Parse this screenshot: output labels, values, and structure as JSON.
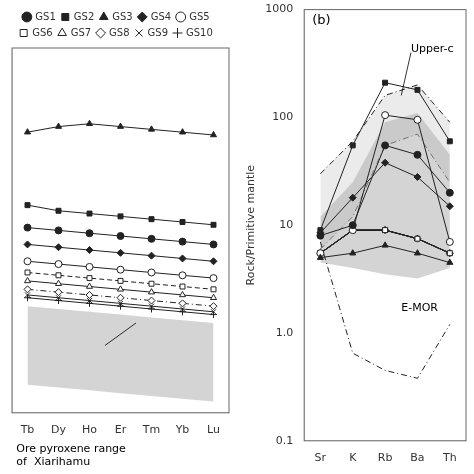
{
  "chart_data": [
    {
      "type": "line",
      "categories": [
        "Tb",
        "Dy",
        "Ho",
        "Er",
        "Tm",
        "Yb",
        "Lu"
      ],
      "color": "#222222",
      "series": [
        {
          "name": "GS1",
          "marker": "circle",
          "line_style": "solid",
          "values": [
            3.8,
            3.75,
            3.7,
            3.65,
            3.6,
            3.55,
            3.5
          ]
        },
        {
          "name": "GS2",
          "marker": "square",
          "line_style": "solid",
          "values": [
            4.2,
            4.1,
            4.05,
            4.0,
            3.95,
            3.9,
            3.85
          ]
        },
        {
          "name": "GS3",
          "marker": "triangle",
          "line_style": "solid",
          "values": [
            5.5,
            5.6,
            5.65,
            5.6,
            5.55,
            5.5,
            5.45
          ]
        },
        {
          "name": "GS4",
          "marker": "diamond",
          "line_style": "solid",
          "values": [
            3.5,
            3.45,
            3.4,
            3.35,
            3.3,
            3.25,
            3.2
          ]
        },
        {
          "name": "GS5",
          "marker": "circle-open",
          "line_style": "solid",
          "values": [
            3.2,
            3.15,
            3.1,
            3.05,
            3.0,
            2.95,
            2.9
          ]
        },
        {
          "name": "GS6",
          "marker": "square-open",
          "line_style": "dashed",
          "values": [
            3.0,
            2.95,
            2.9,
            2.85,
            2.8,
            2.75,
            2.7
          ]
        },
        {
          "name": "GS7",
          "marker": "triangle-open",
          "line_style": "solid",
          "values": [
            2.85,
            2.8,
            2.75,
            2.7,
            2.65,
            2.6,
            2.55
          ]
        },
        {
          "name": "GS8",
          "marker": "diamond-open",
          "line_style": "dashdot",
          "values": [
            2.7,
            2.65,
            2.6,
            2.55,
            2.5,
            2.45,
            2.4
          ]
        },
        {
          "name": "GS9",
          "marker": "x",
          "line_style": "solid",
          "values": [
            2.6,
            2.55,
            2.5,
            2.45,
            2.4,
            2.35,
            2.3
          ]
        },
        {
          "name": "GS10",
          "marker": "plus",
          "line_style": "solid",
          "values": [
            2.55,
            2.5,
            2.45,
            2.4,
            2.35,
            2.3,
            2.25
          ]
        }
      ],
      "bands": [
        {
          "lower": [
            1.0,
            0.95,
            0.9,
            0.85,
            0.8,
            0.75,
            0.7
          ],
          "upper": [
            2.4,
            2.35,
            2.3,
            2.25,
            2.2,
            2.15,
            2.1
          ],
          "color": "#b0b0b0"
        }
      ],
      "annotations": [
        {
          "text": "Ore pyroxene range\nof  Xiarihamu",
          "position": "below"
        },
        {
          "from": [
            2.5,
            1.7
          ],
          "to": [
            3.5,
            2.1
          ]
        }
      ],
      "ylim": [
        0.5,
        7.0
      ],
      "tick_labels": "x",
      "grid": false,
      "legend": "top"
    },
    {
      "type": "line",
      "categories": [
        "Sr",
        "K",
        "Rb",
        "Ba",
        "Th"
      ],
      "color": "#222222",
      "y_label": "Rock/Primitive mantle",
      "log": "y",
      "ylim": [
        0.1,
        1000
      ],
      "yticks": [
        0.1,
        {
          "value": 1,
          "label": "1.0"
        },
        10,
        100,
        1000
      ],
      "grid": false,
      "series": [
        {
          "name": "GS1",
          "marker": "circle",
          "line_style": "solid",
          "values": [
            8.0,
            10.0,
            55.0,
            45.0,
            20.0
          ]
        },
        {
          "name": "GS2",
          "marker": "square",
          "line_style": "solid",
          "values": [
            9.0,
            55.0,
            210.0,
            180.0,
            60.0
          ]
        },
        {
          "name": "GS3",
          "marker": "triangle",
          "line_style": "solid",
          "values": [
            5.0,
            5.5,
            6.5,
            5.5,
            4.5
          ]
        },
        {
          "name": "GS4",
          "marker": "diamond",
          "line_style": "solid",
          "values": [
            8.5,
            18.0,
            38.0,
            28.0,
            15.0
          ]
        },
        {
          "name": "GS5",
          "marker": "circle-open",
          "line_style": "solid",
          "values": [
            5.5,
            9.0,
            105.0,
            95.0,
            7.0
          ]
        },
        {
          "name": "GS6",
          "marker": "square-open",
          "line_style": "solid",
          "values": [
            5.5,
            9.0,
            9.0,
            7.5,
            5.5
          ]
        },
        {
          "name": "GS7",
          "marker": "triangle-open",
          "line_style": "solid",
          "values": [
            5.5,
            9.0,
            9.0,
            7.5,
            5.5
          ]
        },
        {
          "name": "GS8",
          "marker": "diamond-open",
          "line_style": "solid",
          "values": [
            5.5,
            9.0,
            9.0,
            7.5,
            5.5
          ]
        },
        {
          "name": "GS9",
          "marker": "x",
          "line_style": "solid",
          "values": [
            5.5,
            9.0,
            9.0,
            7.5,
            5.5
          ]
        },
        {
          "name": "GS10",
          "marker": "plus",
          "line_style": "solid",
          "values": [
            5.5,
            9.0,
            9.0,
            7.5,
            5.5
          ]
        }
      ],
      "bands": [
        {
          "lower": [
            4.5,
            4.0,
            3.5,
            3.2,
            4.0
          ],
          "upper": [
            12,
            25,
            90,
            110,
            45
          ],
          "color": "#b0b0b0"
        },
        {
          "lower": [
            6,
            12,
            55,
            70,
            25
          ],
          "upper": [
            30,
            60,
            160,
            200,
            90
          ],
          "color": "#b0b0b0",
          "line_style": "dashdot"
        }
      ],
      "lines": [
        {
          "values": [
            7.0,
            0.65,
            0.45,
            0.38,
            1.2
          ],
          "line_style": "dashdot"
        }
      ],
      "annotations": [
        {
          "text": "Upper-c",
          "at": [
            2.8,
            400
          ],
          "to": [
            2.5,
            160
          ]
        },
        {
          "text": "E-MOR",
          "at": [
            2.5,
            1.6
          ]
        },
        {
          "text": "(b)",
          "position": "top-left"
        }
      ]
    }
  ]
}
